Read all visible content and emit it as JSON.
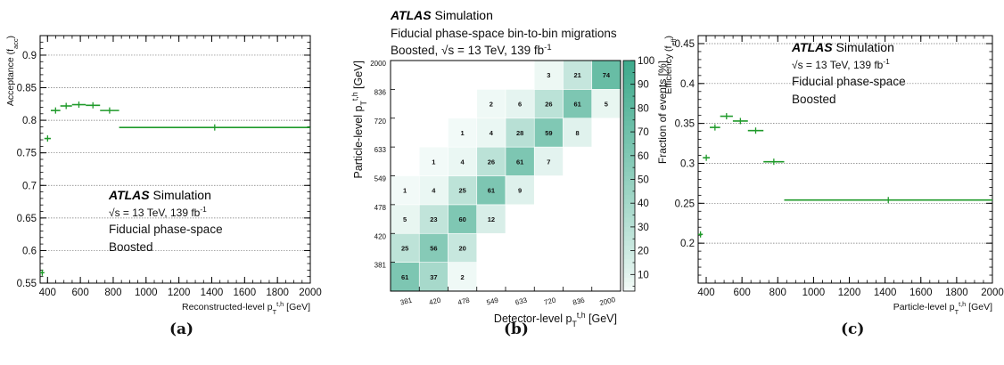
{
  "chart_data": [
    {
      "type": "scatter",
      "ylabel": "Acceptance (f_acc)",
      "xlabel": "Reconstructed-level p_T^{t,h} [GeV]",
      "xlim": [
        355,
        2000
      ],
      "ylim": [
        0.55,
        0.93
      ],
      "x_ticks": [
        400,
        600,
        800,
        1000,
        1200,
        1400,
        1600,
        1800,
        2000
      ],
      "y_ticks": [
        0.55,
        0.6,
        0.65,
        0.7,
        0.75,
        0.8,
        0.85,
        0.9
      ],
      "grid": "horizontal dotted",
      "points": [
        {
          "x0": 355,
          "x1": 381,
          "y": 0.566
        },
        {
          "x0": 381,
          "x1": 420,
          "y": 0.772
        },
        {
          "x0": 420,
          "x1": 478,
          "y": 0.815
        },
        {
          "x0": 478,
          "x1": 549,
          "y": 0.822
        },
        {
          "x0": 549,
          "x1": 633,
          "y": 0.824
        },
        {
          "x0": 633,
          "x1": 720,
          "y": 0.823
        },
        {
          "x0": 720,
          "x1": 836,
          "y": 0.815
        },
        {
          "x0": 836,
          "x1": 2000,
          "y": 0.789
        }
      ],
      "legend": {
        "atlas": "ATLAS",
        "sim": "Simulation",
        "line2": "√s = 13 TeV, 139 fb",
        "line2_sup": "-1",
        "line3": "Fiducial phase-space",
        "line4": "Boosted"
      },
      "sublabel": "(a)"
    },
    {
      "type": "heatmap",
      "title_atlas": "ATLAS",
      "title_sim": "Simulation",
      "title_line2": "Fiducial phase-space bin-to-bin migrations",
      "title_line3": "Boosted, √s = 13 TeV, 139 fb",
      "title_line3_sup": "-1",
      "xlabel": "Detector-level p_T^{t,h} [GeV]",
      "ylabel": "Particle-level p_T^{t,h} [GeV]",
      "zlabel": "Fraction of events [%]",
      "bins": [
        "381",
        "420",
        "478",
        "549",
        "633",
        "720",
        "836",
        "2000"
      ],
      "z_ticks": [
        10,
        20,
        30,
        40,
        50,
        60,
        70,
        80,
        90,
        100
      ],
      "cells": [
        [
          61,
          37,
          2,
          null,
          null,
          null,
          null,
          null
        ],
        [
          25,
          56,
          20,
          null,
          null,
          null,
          null,
          null
        ],
        [
          5,
          23,
          60,
          12,
          null,
          null,
          null,
          null
        ],
        [
          1,
          4,
          25,
          61,
          9,
          null,
          null,
          null
        ],
        [
          null,
          1,
          4,
          26,
          61,
          7,
          null,
          null
        ],
        [
          null,
          null,
          1,
          4,
          28,
          59,
          8,
          null
        ],
        [
          null,
          null,
          null,
          2,
          6,
          26,
          61,
          5
        ],
        [
          null,
          null,
          null,
          null,
          null,
          3,
          21,
          74
        ]
      ],
      "sublabel": "(b)"
    },
    {
      "type": "scatter",
      "ylabel": "Efficiency (f_eff)",
      "xlabel": "Particle-level p_T^{t,h} [GeV]",
      "xlim": [
        355,
        2000
      ],
      "ylim": [
        0.15,
        0.46
      ],
      "x_ticks": [
        400,
        600,
        800,
        1000,
        1200,
        1400,
        1600,
        1800,
        2000
      ],
      "y_ticks": [
        0.2,
        0.25,
        0.3,
        0.35,
        0.4,
        0.45
      ],
      "grid": "horizontal dotted",
      "points": [
        {
          "x0": 355,
          "x1": 381,
          "y": 0.211
        },
        {
          "x0": 381,
          "x1": 420,
          "y": 0.307
        },
        {
          "x0": 420,
          "x1": 478,
          "y": 0.345
        },
        {
          "x0": 478,
          "x1": 549,
          "y": 0.359
        },
        {
          "x0": 549,
          "x1": 633,
          "y": 0.353
        },
        {
          "x0": 633,
          "x1": 720,
          "y": 0.341
        },
        {
          "x0": 720,
          "x1": 836,
          "y": 0.302
        },
        {
          "x0": 836,
          "x1": 2000,
          "y": 0.254
        }
      ],
      "legend": {
        "atlas": "ATLAS",
        "sim": "Simulation",
        "line2": "√s = 13 TeV, 139 fb",
        "line2_sup": "-1",
        "line3": "Fiducial phase-space",
        "line4": "Boosted"
      },
      "sublabel": "(c)"
    }
  ]
}
